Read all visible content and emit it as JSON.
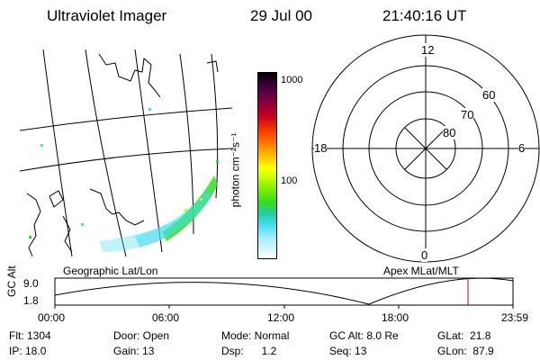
{
  "header": {
    "title": "Ultraviolet Imager",
    "date": "29 Jul 00",
    "time": "21:40:16 UT"
  },
  "colorbar": {
    "label": "photon cm⁻²s⁻¹",
    "ticks": [
      "1000",
      "100"
    ],
    "colors": [
      "#000000",
      "#3a0033",
      "#660044",
      "#990033",
      "#cc0022",
      "#ee3300",
      "#ff6600",
      "#ff9900",
      "#ffcc00",
      "#ffff00",
      "#ccff00",
      "#88ee00",
      "#33dd22",
      "#22ccaa",
      "#44ddee",
      "#99eeff",
      "#ccf5ff",
      "#ffffff"
    ]
  },
  "polar": {
    "mlt_labels": {
      "top": "12",
      "left": "18",
      "right": "6",
      "bottom": "0"
    },
    "lat_labels": [
      "60",
      "70",
      "80"
    ]
  },
  "panels": {
    "left_caption": "Geographic Lat/Lon",
    "right_caption": "Apex MLat/MLT"
  },
  "altplot": {
    "ylabel": "GC Alt",
    "yticks": [
      "9.0",
      "1.8"
    ],
    "xticks": [
      "00:00",
      "06:00",
      "12:00",
      "18:00",
      "23:59"
    ],
    "marker_color": "#dd0000"
  },
  "info": {
    "flt": "Flt: 1304",
    "ip": "IP: 18.0",
    "door": "Door: Open",
    "gain": "Gain: 13",
    "mode": "Mode: Normal",
    "dsp": "Dsp:      1.2",
    "gcalt": "GC Alt: 8.0 Re",
    "seq": "Seq: 13",
    "glat": "GLat:  21.8",
    "glon": "GLon:  87.9"
  }
}
